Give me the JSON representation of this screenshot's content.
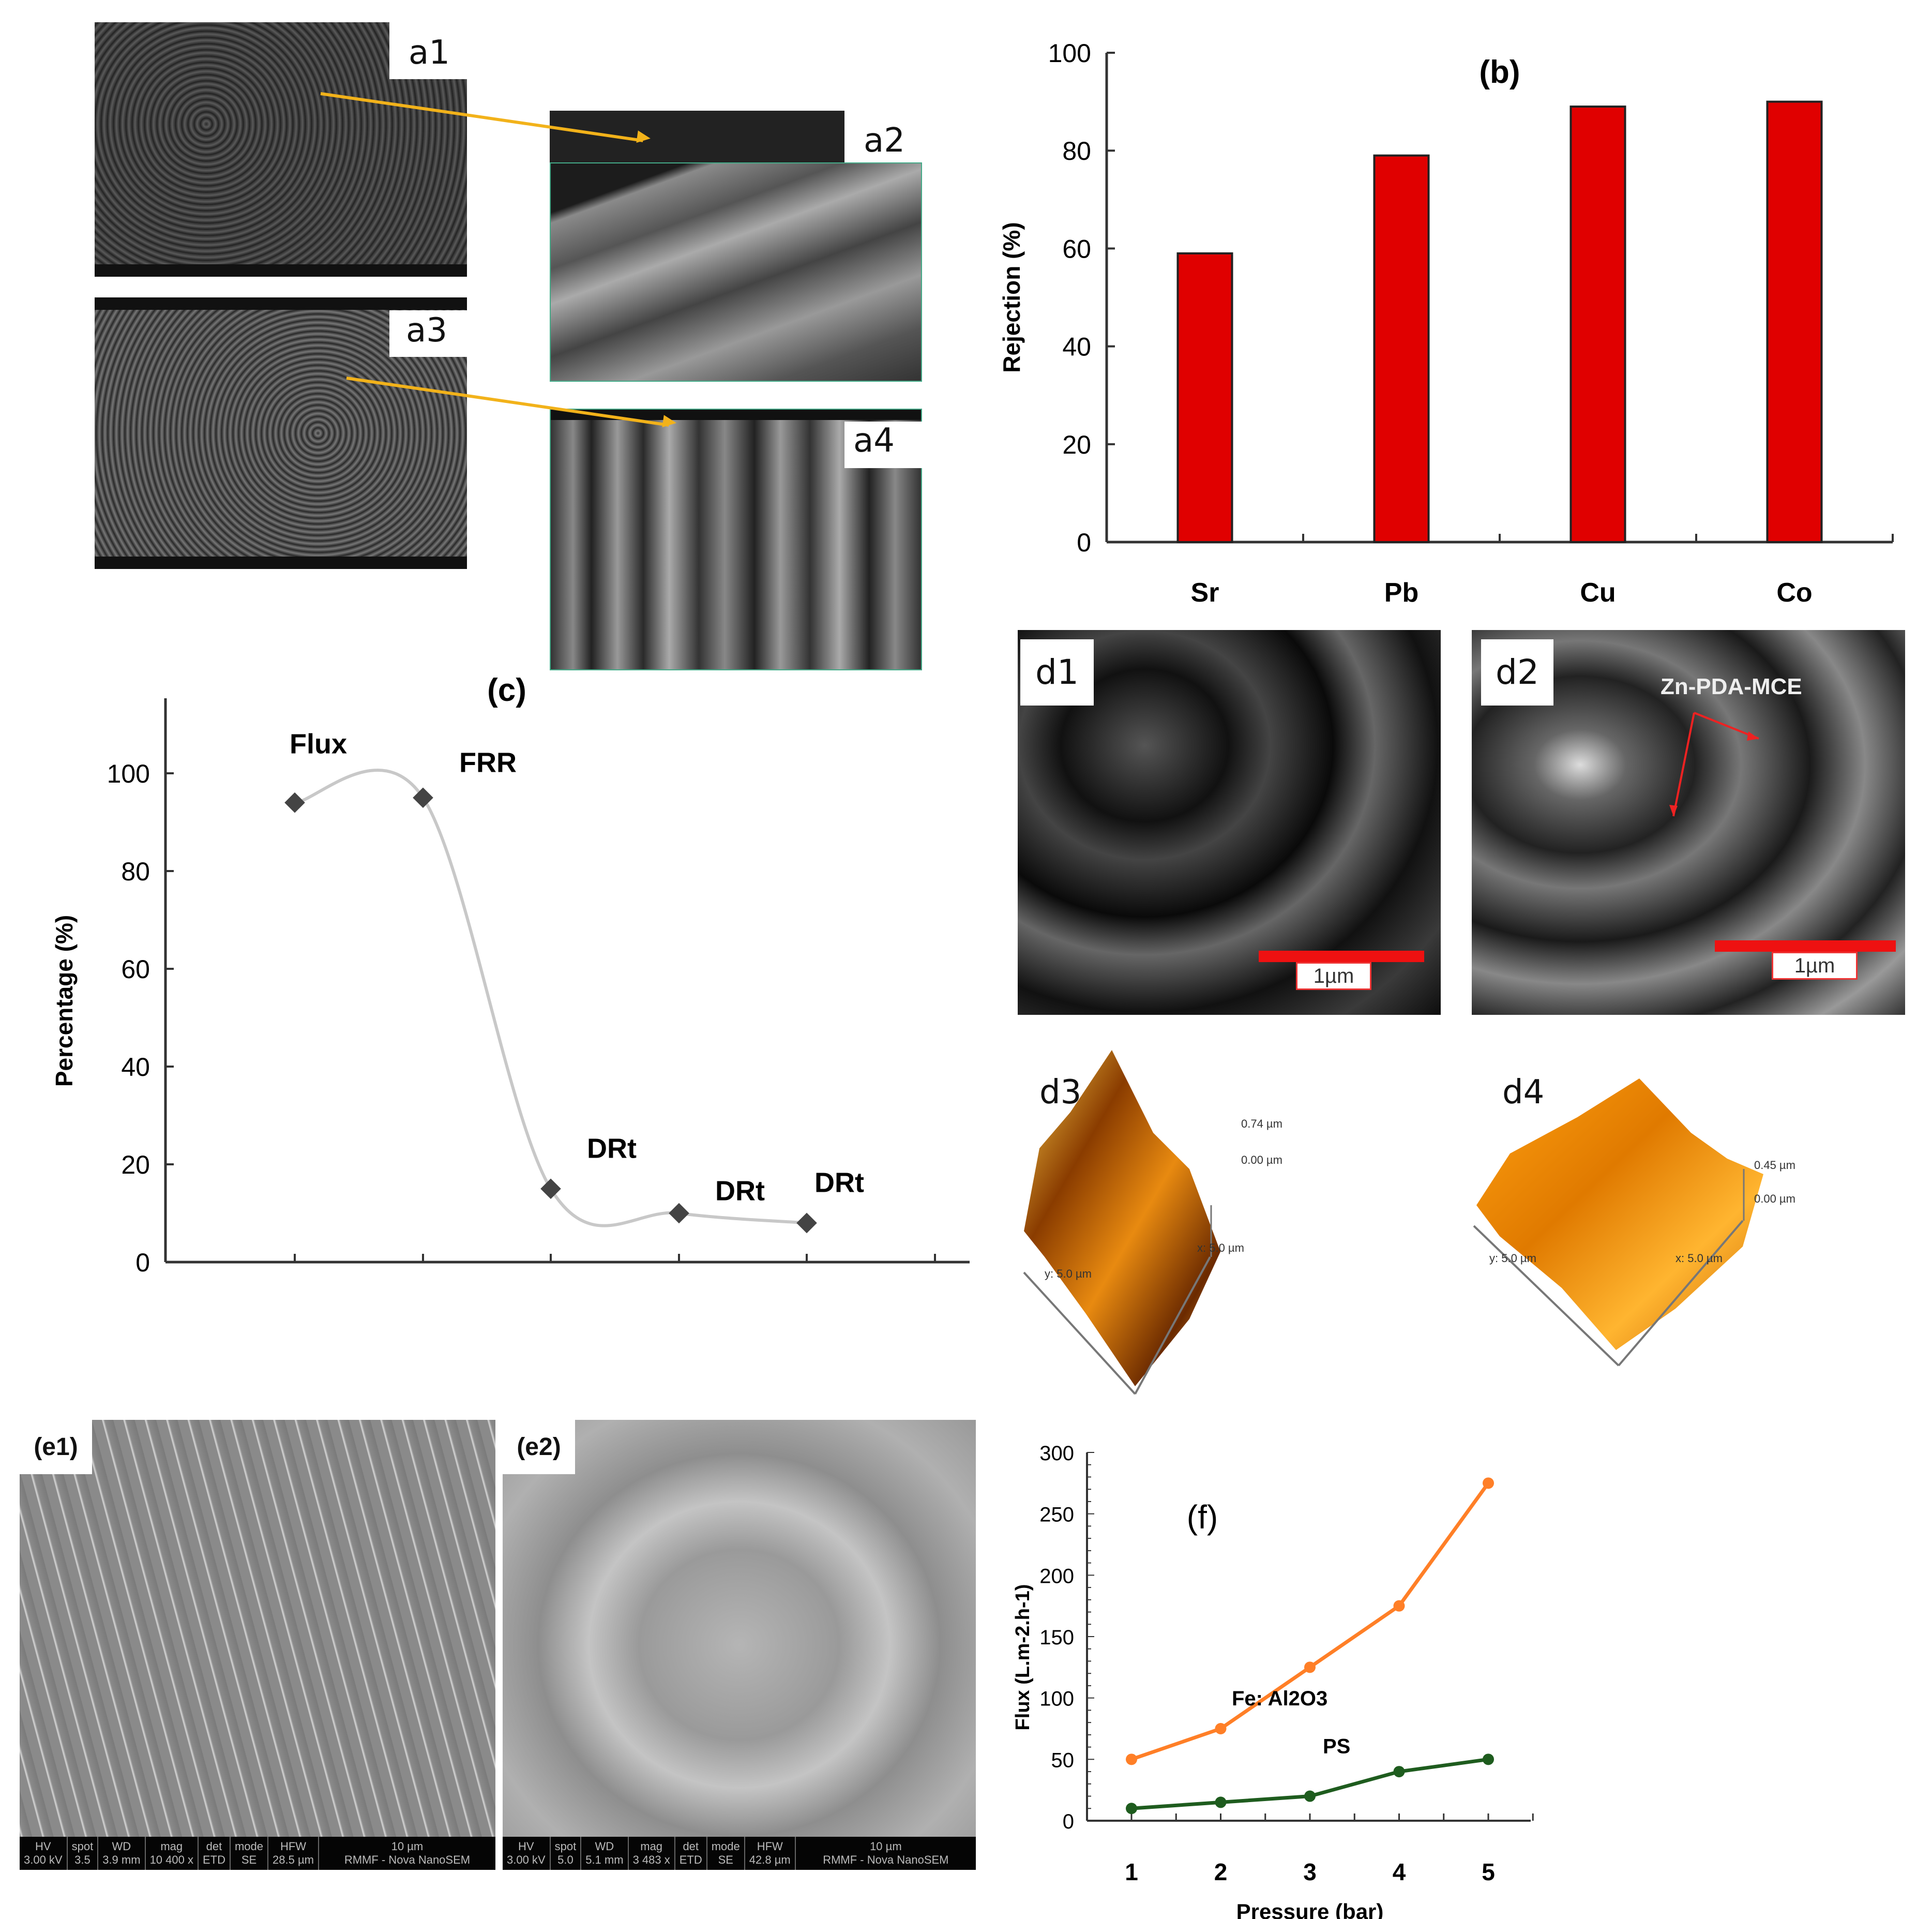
{
  "figure": {
    "panels": {
      "a1": {
        "label": "a1"
      },
      "a2": {
        "label": "a2"
      },
      "a3": {
        "label": "a3"
      },
      "a4": {
        "label": "a4"
      },
      "d1": {
        "label": "d1",
        "scale_label": "1µm"
      },
      "d2": {
        "label": "d2",
        "scale_label": "1µm",
        "annotation": "Zn-PDA-MCE"
      },
      "d3": {
        "label": "d3",
        "z_max": "0.74 µm",
        "z_min": "0.00 µm",
        "x_axis": "x: 5.0 µm",
        "y_axis": "y: 5.0 µm"
      },
      "d4": {
        "label": "d4",
        "z_max": "0.45 µm",
        "z_min": "0.00 µm",
        "x_axis": "x: 5.0 µm",
        "y_axis": "y: 5.0 µm"
      },
      "e1": {
        "label": "(e1)",
        "info_headers": [
          "HV",
          "spot",
          "WD",
          "mag",
          "det",
          "mode",
          "HFW"
        ],
        "info_values": [
          "3.00 kV",
          "3.5",
          "3.9 mm",
          "10 400 x",
          "ETD",
          "SE",
          "28.5 µm"
        ],
        "scale_label": "10 µm",
        "instrument": "RMMF - Nova NanoSEM"
      },
      "e2": {
        "label": "(e2)",
        "info_headers": [
          "HV",
          "spot",
          "WD",
          "mag",
          "det",
          "mode",
          "HFW"
        ],
        "info_values": [
          "3.00 kV",
          "5.0",
          "5.1 mm",
          "3 483 x",
          "ETD",
          "SE",
          "42.8 µm"
        ],
        "scale_label": "10 µm",
        "instrument": "RMMF - Nova NanoSEM"
      }
    },
    "colors": {
      "bar_red": "#e00000",
      "line_gray": "#c8c8c8",
      "marker_dark": "#444444",
      "series_orange": "#ff7f27",
      "series_green": "#1e5c1e",
      "arrow_yellow": "#f2b21a"
    }
  },
  "chart_data": [
    {
      "id": "b",
      "type": "bar",
      "title": "(b)",
      "categories": [
        "Sr",
        "Pb",
        "Cu",
        "Co"
      ],
      "values": [
        59,
        79,
        89,
        90
      ],
      "xlabel": "",
      "ylabel": "Rejection (%)",
      "ylim": [
        0,
        100
      ],
      "yticks": [
        "0",
        "20",
        "40",
        "60",
        "80",
        "100"
      ],
      "grid": false
    },
    {
      "id": "c",
      "type": "line",
      "title": "(c)",
      "categories": [
        "Flux",
        "FRR",
        "DRt",
        "DRt",
        "DRt"
      ],
      "point_labels": [
        "Flux",
        "FRR",
        "DRt",
        "DRt",
        "DRt"
      ],
      "values": [
        94,
        95,
        15,
        10,
        8
      ],
      "xlabel": "",
      "ylabel": "Percentage (%)",
      "ylim": [
        0,
        110
      ],
      "yticks": [
        "0",
        "20",
        "40",
        "60",
        "80",
        "100"
      ],
      "grid": false,
      "smooth": true
    },
    {
      "id": "f",
      "type": "line",
      "title": "(f)",
      "x": [
        1,
        2,
        3,
        4,
        5
      ],
      "xticks": [
        "1",
        "2",
        "3",
        "4",
        "5"
      ],
      "series": [
        {
          "name": "Fe: Al2O3",
          "values": [
            50,
            75,
            125,
            175,
            275
          ]
        },
        {
          "name": "PS",
          "values": [
            10,
            15,
            20,
            40,
            50
          ]
        }
      ],
      "xlabel": "Pressure (bar)",
      "ylabel": "Flux (L.m-2.h-1)",
      "ylim": [
        0,
        300
      ],
      "yticks": [
        "0",
        "50",
        "100",
        "150",
        "200",
        "250",
        "300"
      ],
      "grid": false
    }
  ]
}
